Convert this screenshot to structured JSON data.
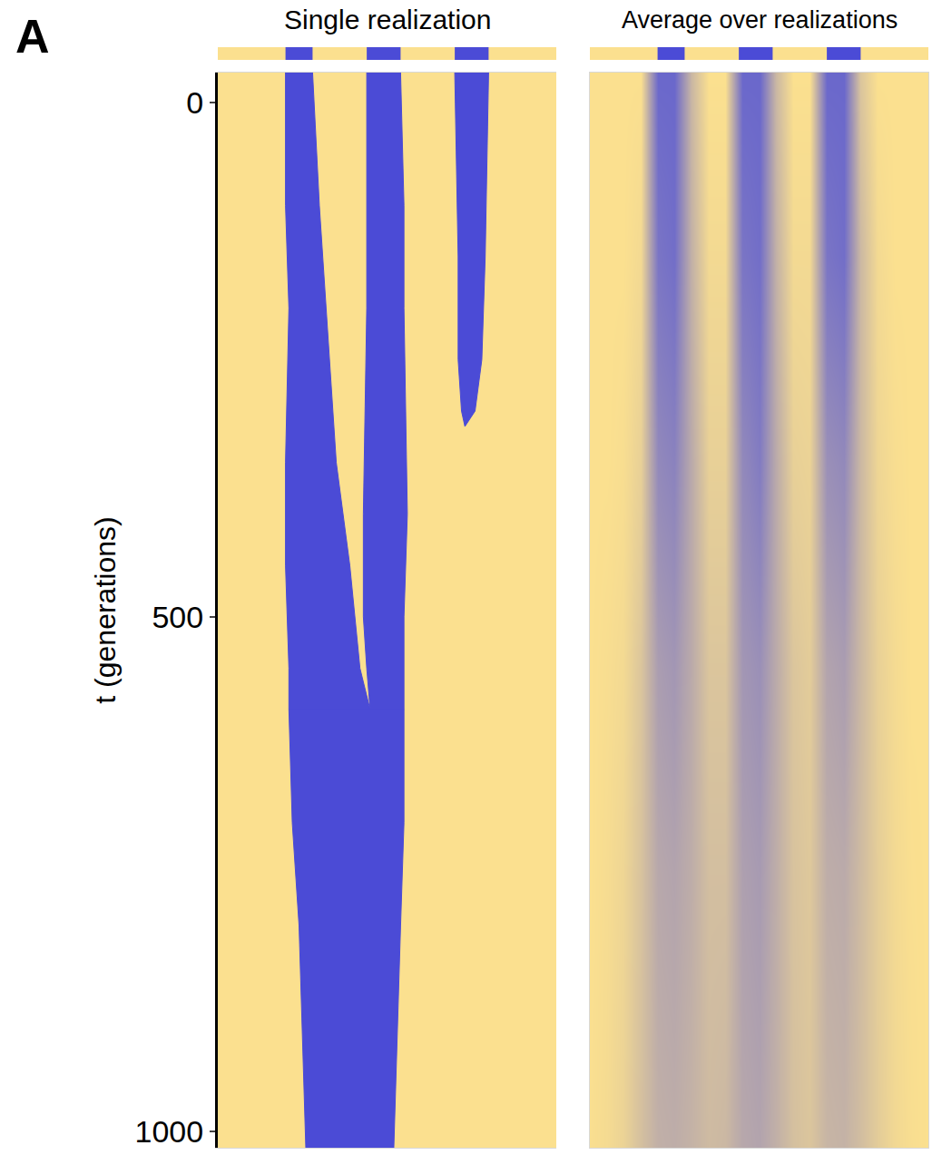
{
  "panel_label": "A",
  "chart_data": [
    {
      "type": "domains",
      "title": "Single realization",
      "y_label": "t (generations)",
      "xlim": [
        0,
        100
      ],
      "ylim": [
        -29,
        1016
      ],
      "yticks": [
        0,
        500,
        1000
      ],
      "tick_labels": "y",
      "color": "#4b4bd6",
      "domains": [
        {
          "t": [
            -29,
            100,
            200,
            350,
            450,
            550,
            590
          ],
          "left": [
            20,
            20,
            21,
            20,
            20,
            21,
            21
          ],
          "right": [
            28,
            30,
            32,
            35,
            39,
            42,
            45
          ]
        },
        {
          "t": [
            -29,
            100,
            200,
            400,
            500,
            550,
            590
          ],
          "left": [
            44,
            44,
            44,
            43,
            43,
            44,
            45
          ],
          "right": [
            54,
            55,
            55,
            56,
            55,
            55,
            55
          ]
        },
        {
          "t": [
            590,
            700,
            800,
            900,
            1016
          ],
          "left": [
            21,
            22,
            24,
            25,
            26
          ],
          "right": [
            55,
            55,
            54,
            53,
            52
          ]
        },
        {
          "t": [
            -29,
            150,
            250,
            300,
            315
          ],
          "left": [
            70,
            71,
            71,
            72,
            73
          ],
          "right": [
            80,
            79,
            78,
            76,
            73
          ]
        }
      ]
    },
    {
      "type": "heatmap",
      "title": "Average over realizations",
      "xlim": [
        0,
        100
      ],
      "ylim": [
        -29,
        1016
      ],
      "tick_labels": false,
      "color": "#5a5ad2",
      "zlim": [
        0,
        1
      ],
      "x": [
        0,
        5,
        10,
        15,
        20,
        25,
        30,
        35,
        40,
        45,
        50,
        55,
        60,
        65,
        70,
        75,
        80,
        85,
        90,
        95,
        100
      ],
      "t": [
        -29,
        150,
        350,
        550,
        750,
        1016
      ],
      "z": [
        [
          0,
          0,
          0,
          0,
          0.9,
          0.9,
          0.3,
          0,
          0,
          0.9,
          0.9,
          0.3,
          0,
          0,
          0.9,
          0.9,
          0.2,
          0,
          0,
          0,
          0
        ],
        [
          0,
          0,
          0,
          0.05,
          0.8,
          0.85,
          0.35,
          0.05,
          0.05,
          0.8,
          0.85,
          0.35,
          0.05,
          0.05,
          0.8,
          0.85,
          0.3,
          0.05,
          0,
          0,
          0
        ],
        [
          0,
          0,
          0.02,
          0.12,
          0.65,
          0.7,
          0.4,
          0.12,
          0.12,
          0.65,
          0.75,
          0.4,
          0.12,
          0.1,
          0.6,
          0.65,
          0.3,
          0.08,
          0.02,
          0,
          0
        ],
        [
          0,
          0.02,
          0.05,
          0.2,
          0.5,
          0.55,
          0.4,
          0.2,
          0.2,
          0.55,
          0.6,
          0.4,
          0.2,
          0.15,
          0.45,
          0.5,
          0.3,
          0.12,
          0.04,
          0,
          0
        ],
        [
          0,
          0.03,
          0.08,
          0.22,
          0.42,
          0.45,
          0.38,
          0.25,
          0.25,
          0.48,
          0.52,
          0.38,
          0.22,
          0.18,
          0.38,
          0.4,
          0.28,
          0.14,
          0.05,
          0.01,
          0
        ],
        [
          0.01,
          0.04,
          0.1,
          0.24,
          0.36,
          0.38,
          0.34,
          0.28,
          0.3,
          0.42,
          0.45,
          0.36,
          0.24,
          0.2,
          0.32,
          0.34,
          0.26,
          0.15,
          0.06,
          0.02,
          0
        ]
      ]
    }
  ]
}
